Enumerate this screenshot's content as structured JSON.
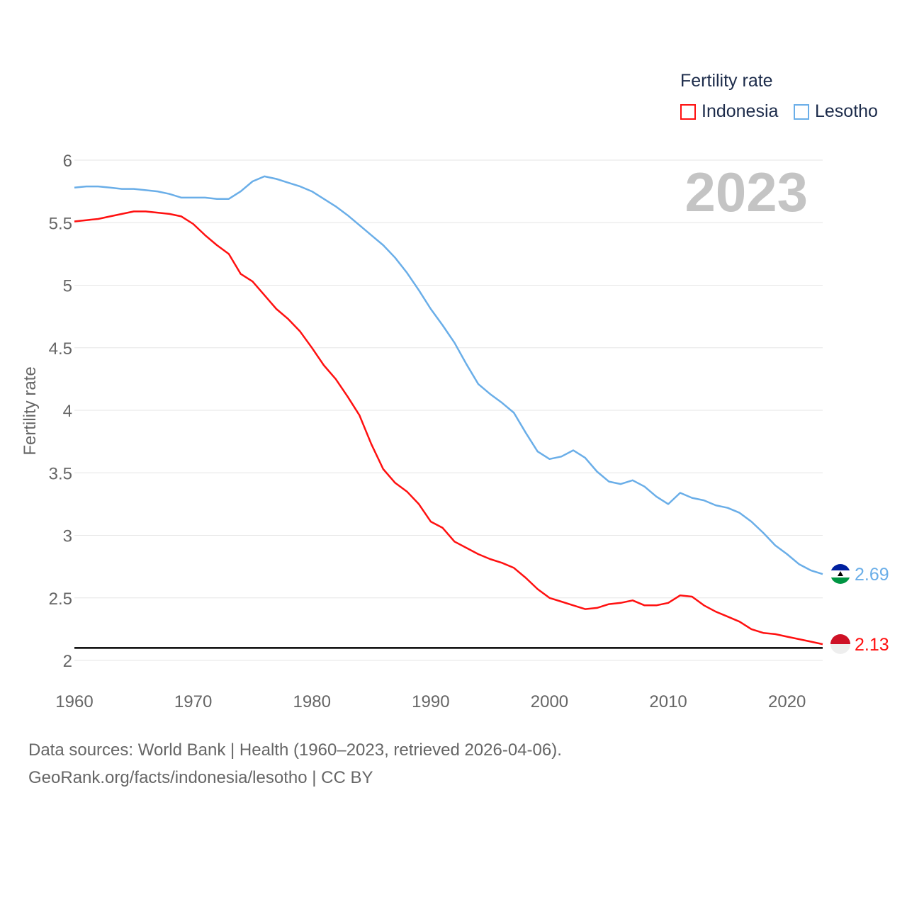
{
  "legend": {
    "title": "Fertility rate",
    "items": [
      {
        "label": "Indonesia",
        "color": "#ff1010"
      },
      {
        "label": "Lesotho",
        "color": "#6aaee8"
      }
    ]
  },
  "year_label": "2023",
  "footer": {
    "line1": "Data sources: World Bank | Health (1960–2023, retrieved 2026-04-06).",
    "line2": "GeoRank.org/facts/indonesia/lesotho | CC BY"
  },
  "chart_data": {
    "type": "line",
    "title": "Fertility rate",
    "xlabel": "",
    "ylabel": "Fertility rate",
    "xlim": [
      1960,
      2023
    ],
    "ylim": [
      2,
      6
    ],
    "x_ticks": [
      1960,
      1970,
      1980,
      1990,
      2000,
      2010,
      2020
    ],
    "y_ticks": [
      2,
      2.5,
      3,
      3.5,
      4,
      4.5,
      5,
      5.5,
      6
    ],
    "y_tick_labels": [
      "2",
      "2.5",
      "3",
      "3.5",
      "4",
      "4.5",
      "5",
      "5.5",
      "6"
    ],
    "reference_line": 2.1,
    "x": [
      1960,
      1961,
      1962,
      1963,
      1964,
      1965,
      1966,
      1967,
      1968,
      1969,
      1970,
      1971,
      1972,
      1973,
      1974,
      1975,
      1976,
      1977,
      1978,
      1979,
      1980,
      1981,
      1982,
      1983,
      1984,
      1985,
      1986,
      1987,
      1988,
      1989,
      1990,
      1991,
      1992,
      1993,
      1994,
      1995,
      1996,
      1997,
      1998,
      1999,
      2000,
      2001,
      2002,
      2003,
      2004,
      2005,
      2006,
      2007,
      2008,
      2009,
      2010,
      2011,
      2012,
      2013,
      2014,
      2015,
      2016,
      2017,
      2018,
      2019,
      2020,
      2021,
      2022,
      2023
    ],
    "series": [
      {
        "name": "Indonesia",
        "color": "#ff1010",
        "end_label": "2.13",
        "values": [
          5.51,
          5.52,
          5.53,
          5.55,
          5.57,
          5.59,
          5.59,
          5.58,
          5.57,
          5.55,
          5.49,
          5.4,
          5.32,
          5.25,
          5.09,
          5.03,
          4.92,
          4.81,
          4.73,
          4.63,
          4.5,
          4.36,
          4.25,
          4.11,
          3.96,
          3.73,
          3.53,
          3.42,
          3.35,
          3.25,
          3.11,
          3.06,
          2.95,
          2.9,
          2.85,
          2.81,
          2.78,
          2.74,
          2.66,
          2.57,
          2.5,
          2.47,
          2.44,
          2.41,
          2.42,
          2.45,
          2.46,
          2.48,
          2.44,
          2.44,
          2.46,
          2.52,
          2.51,
          2.44,
          2.39,
          2.35,
          2.31,
          2.25,
          2.22,
          2.21,
          2.19,
          2.17,
          2.15,
          2.13
        ]
      },
      {
        "name": "Lesotho",
        "color": "#6aaee8",
        "end_label": "2.69",
        "values": [
          5.78,
          5.79,
          5.79,
          5.78,
          5.77,
          5.77,
          5.76,
          5.75,
          5.73,
          5.7,
          5.7,
          5.7,
          5.69,
          5.69,
          5.75,
          5.83,
          5.87,
          5.85,
          5.82,
          5.79,
          5.75,
          5.69,
          5.63,
          5.56,
          5.48,
          5.4,
          5.32,
          5.22,
          5.1,
          4.96,
          4.81,
          4.68,
          4.54,
          4.37,
          4.21,
          4.13,
          4.06,
          3.98,
          3.82,
          3.67,
          3.61,
          3.63,
          3.68,
          3.62,
          3.51,
          3.43,
          3.41,
          3.44,
          3.39,
          3.31,
          3.25,
          3.34,
          3.3,
          3.28,
          3.24,
          3.22,
          3.18,
          3.11,
          3.02,
          2.92,
          2.85,
          2.77,
          2.72,
          2.69
        ]
      }
    ]
  }
}
